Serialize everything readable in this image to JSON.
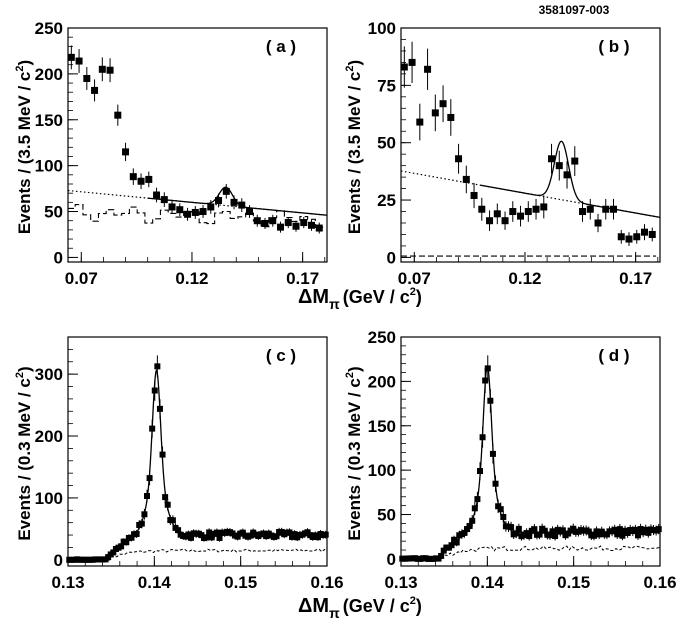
{
  "figure_id": "3581097-003",
  "x_axis_label_top": {
    "main": "ΔM",
    "sub": "π",
    "unit": "(GeV / c",
    "sup": "2",
    "close": ")"
  },
  "x_axis_label_bottom": {
    "main": "ΔM",
    "sub": "π",
    "unit": "(GeV / c",
    "sup": "2",
    "close": ")"
  },
  "chart_data": [
    {
      "panel": "a",
      "label": "( a )",
      "type": "scatter",
      "ylabel": "Events / (3.5 MeV / c",
      "ylabel_sup": "2",
      "ylabel_close": ")",
      "xlim": [
        0.064,
        0.181
      ],
      "ylim": [
        -5,
        250
      ],
      "xticks": [
        0.07,
        0.12,
        0.17
      ],
      "xtick_labels": [
        "0.07",
        "0.12",
        "0.17"
      ],
      "yticks": [
        0,
        50,
        100,
        150,
        200,
        250
      ],
      "ytick_labels": [
        "0",
        "50",
        "100",
        "150",
        "200",
        "250"
      ],
      "data": {
        "x": [
          0.0655,
          0.069,
          0.0725,
          0.076,
          0.0795,
          0.083,
          0.0865,
          0.09,
          0.0935,
          0.097,
          0.1005,
          0.104,
          0.1075,
          0.111,
          0.1145,
          0.118,
          0.1215,
          0.125,
          0.1285,
          0.132,
          0.1355,
          0.139,
          0.1425,
          0.146,
          0.1495,
          0.153,
          0.1565,
          0.16,
          0.1635,
          0.167,
          0.1705,
          0.174,
          0.1775
        ],
        "y": [
          218,
          214,
          195,
          182,
          205,
          204,
          155,
          115,
          88,
          83,
          85,
          68,
          63,
          55,
          52,
          47,
          49,
          50,
          55,
          62,
          72,
          60,
          57,
          50,
          40,
          37,
          40,
          33,
          38,
          34,
          38,
          35,
          32
        ],
        "err": [
          13,
          13,
          12.5,
          12,
          13,
          13,
          11.5,
          10,
          9,
          8.5,
          8.5,
          8,
          8,
          7,
          7,
          7,
          7,
          7,
          7.5,
          7.5,
          8,
          7.5,
          7.5,
          7,
          6.5,
          6,
          6.5,
          6,
          6,
          6,
          6,
          6,
          6
        ]
      },
      "fit": {
        "bg_a": 60,
        "bg_b": -230,
        "peak_mu": 0.1353,
        "peak_sigma": 0.003,
        "peak_amp": 20,
        "dotted_extends_to": 0.1
      }
    },
    {
      "panel": "b",
      "label": "( b )",
      "type": "scatter",
      "ylabel": "Events / (3.5 MeV / c",
      "ylabel_sup": "2",
      "ylabel_close": ")",
      "xlim": [
        0.064,
        0.181
      ],
      "ylim": [
        -2,
        100
      ],
      "xticks": [
        0.07,
        0.12,
        0.17
      ],
      "xtick_labels": [
        "0.07",
        "0.12",
        "0.17"
      ],
      "yticks": [
        0,
        25,
        50,
        75,
        100
      ],
      "ytick_labels": [
        "0",
        "25",
        "50",
        "75",
        "100"
      ],
      "data": {
        "x": [
          0.0655,
          0.069,
          0.0725,
          0.076,
          0.0795,
          0.083,
          0.0865,
          0.09,
          0.0935,
          0.097,
          0.1005,
          0.104,
          0.1075,
          0.111,
          0.1145,
          0.118,
          0.1215,
          0.125,
          0.1285,
          0.132,
          0.1355,
          0.139,
          0.1425,
          0.146,
          0.1495,
          0.153,
          0.1565,
          0.16,
          0.1635,
          0.167,
          0.1705,
          0.174,
          0.1775
        ],
        "y": [
          83,
          85,
          59,
          82,
          63,
          67,
          61,
          43,
          34,
          27,
          21,
          16,
          19,
          16,
          20,
          18,
          20,
          21,
          22,
          43,
          40,
          36,
          42,
          20,
          21,
          15,
          21,
          21,
          9,
          8,
          9,
          11,
          10
        ],
        "err": [
          9,
          9,
          8,
          9,
          8,
          8,
          8,
          6.5,
          6,
          5.5,
          5,
          4.5,
          4.5,
          4,
          4.5,
          4.5,
          4.5,
          4.5,
          5,
          6.5,
          6.5,
          6,
          6.5,
          4.5,
          4.5,
          4,
          4.5,
          4.5,
          3,
          3,
          3,
          3.5,
          3
        ]
      },
      "fit": {
        "bg_a": 28,
        "bg_b": -173,
        "peak_mu": 0.1365,
        "peak_sigma": 0.0032,
        "peak_amp": 25.5,
        "dotted_extends_to": 0.1
      }
    },
    {
      "panel": "c",
      "label": "( c )",
      "type": "scatter",
      "ylabel": "Events / (0.3 MeV / c",
      "ylabel_sup": "2",
      "ylabel_close": ")",
      "xlim": [
        0.13,
        0.16
      ],
      "ylim": [
        -10,
        360
      ],
      "xticks": [
        0.13,
        0.14,
        0.15,
        0.16
      ],
      "xtick_labels": [
        "0.13",
        "0.14",
        "0.15",
        "0.16"
      ],
      "yticks": [
        0,
        100,
        200,
        300
      ],
      "ytick_labels": [
        "0",
        "100",
        "200",
        "300"
      ],
      "fit": {
        "threshold": 0.1345,
        "tail_level": 40,
        "peak_mu": 0.14025,
        "peak_sigma_core": 0.00045,
        "peak_amp_core": 185,
        "peak_sigma_wide": 0.0011,
        "peak_amp_wide": 82,
        "bg_dashed_level": 15
      }
    },
    {
      "panel": "d",
      "label": "( d )",
      "type": "scatter",
      "ylabel": "Events / (0.3 MeV / c",
      "ylabel_sup": "2",
      "ylabel_close": ")",
      "xlim": [
        0.13,
        0.16
      ],
      "ylim": [
        -8,
        250
      ],
      "xticks": [
        0.13,
        0.14,
        0.15,
        0.16
      ],
      "xtick_labels": [
        "0.13",
        "0.14",
        "0.15",
        "0.16"
      ],
      "yticks": [
        0,
        50,
        100,
        150,
        200,
        250
      ],
      "ytick_labels": [
        "0",
        "50",
        "100",
        "150",
        "200",
        "250"
      ],
      "fit": {
        "threshold": 0.1345,
        "tail_level": 30,
        "peak_mu": 0.14,
        "peak_sigma_core": 0.00045,
        "peak_amp_core": 130,
        "peak_sigma_wide": 0.0011,
        "peak_amp_wide": 58,
        "bg_dashed_level": 12
      }
    }
  ]
}
